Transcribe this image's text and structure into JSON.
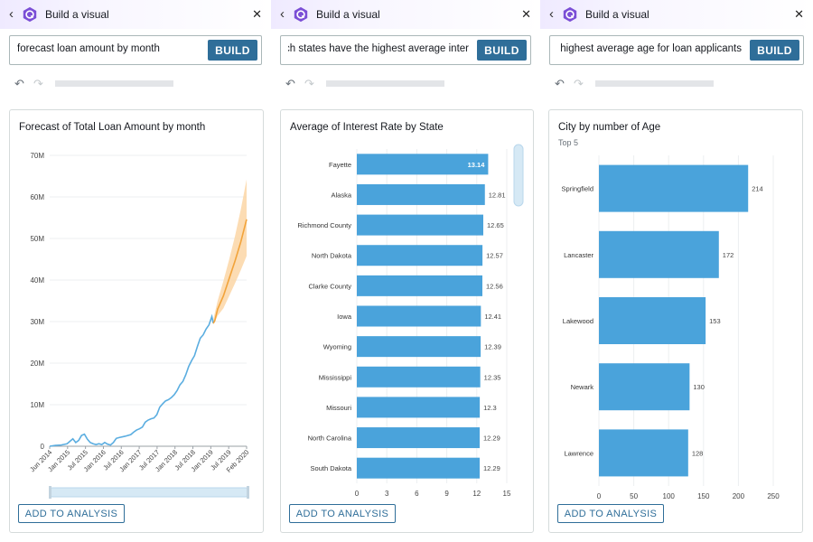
{
  "colors": {
    "bar": "#4aa3db",
    "line": "#5aade0",
    "forecast": "#f2a33a",
    "forecast_band": "#fbd6a6",
    "accent": "#2f6e99"
  },
  "panels": [
    {
      "header_title": "Build a visual",
      "query": "forecast loan amount by month",
      "build_label": "BUILD",
      "add_label": "ADD TO ANALYSIS",
      "card_title": "Forecast of Total Loan Amount by month"
    },
    {
      "header_title": "Build a visual",
      "query": "Which states have the highest average inter",
      "build_label": "BUILD",
      "add_label": "ADD TO ANALYSIS",
      "card_title": "Average of Interest Rate by State"
    },
    {
      "header_title": "Build a visual",
      "query": "the highest average age for loan applicants",
      "build_label": "BUILD",
      "add_label": "ADD TO ANALYSIS",
      "card_title": "City by number of Age",
      "card_subtitle": "Top 5"
    }
  ],
  "chart_data": [
    {
      "type": "line",
      "ytick_labels": [
        "0",
        "10M",
        "20M",
        "30M",
        "40M",
        "50M",
        "60M",
        "70M"
      ],
      "ylim": [
        0,
        70
      ],
      "xtick_labels": [
        "Jun 2014",
        "Jan 2015",
        "Jul 2015",
        "Jan 2016",
        "Jul 2016",
        "Jan 2017",
        "Jul 2017",
        "Jan 2018",
        "Jul 2018",
        "Jan 2019",
        "Jul 2019",
        "Feb 2020"
      ],
      "x_month_range": [
        0,
        68
      ],
      "series": [
        {
          "role": "actual",
          "points": [
            [
              0,
              0
            ],
            [
              2,
              0.2
            ],
            [
              4,
              0.3
            ],
            [
              6,
              0.6
            ],
            [
              7,
              1.2
            ],
            [
              8,
              1.8
            ],
            [
              9,
              0.9
            ],
            [
              10,
              1.4
            ],
            [
              11,
              2.6
            ],
            [
              12,
              2.9
            ],
            [
              13,
              1.7
            ],
            [
              14,
              0.9
            ],
            [
              15,
              0.6
            ],
            [
              16,
              0.4
            ],
            [
              17,
              0.6
            ],
            [
              18,
              0.4
            ],
            [
              19,
              0.9
            ],
            [
              20,
              0.5
            ],
            [
              21,
              0.3
            ],
            [
              22,
              0.9
            ],
            [
              23,
              1.9
            ],
            [
              24,
              2.1
            ],
            [
              26,
              2.4
            ],
            [
              28,
              2.8
            ],
            [
              29,
              3.4
            ],
            [
              30,
              3.9
            ],
            [
              31,
              4.2
            ],
            [
              32,
              4.6
            ],
            [
              33,
              5.8
            ],
            [
              34,
              6.3
            ],
            [
              35,
              6.6
            ],
            [
              36,
              6.8
            ],
            [
              37,
              7.6
            ],
            [
              38,
              9.4
            ],
            [
              39,
              10.2
            ],
            [
              40,
              10.9
            ],
            [
              41,
              11.2
            ],
            [
              42,
              11.7
            ],
            [
              43,
              12.4
            ],
            [
              44,
              13.4
            ],
            [
              45,
              14.8
            ],
            [
              46,
              15.6
            ],
            [
              47,
              17.2
            ],
            [
              48,
              19.2
            ],
            [
              49,
              20.6
            ],
            [
              50,
              21.8
            ],
            [
              51,
              24.0
            ],
            [
              52,
              26.0
            ],
            [
              53,
              26.8
            ],
            [
              54,
              28.2
            ],
            [
              55,
              29.2
            ],
            [
              56,
              31.2
            ],
            [
              56.5,
              29.6
            ]
          ]
        },
        {
          "role": "forecast",
          "points": [
            [
              56.5,
              29.6
            ],
            [
              57,
              30.2
            ],
            [
              58,
              33.0
            ],
            [
              60,
              36.2
            ],
            [
              62,
              40.4
            ],
            [
              64,
              44.6
            ],
            [
              66,
              49.2
            ],
            [
              68,
              54.6
            ]
          ]
        },
        {
          "role": "forecast_band",
          "upper": [
            [
              56.5,
              30.5
            ],
            [
              58,
              35.0
            ],
            [
              60,
              39.8
            ],
            [
              62,
              45.0
            ],
            [
              64,
              50.6
            ],
            [
              66,
              57.0
            ],
            [
              68,
              64.2
            ]
          ],
          "lower": [
            [
              56.5,
              29.2
            ],
            [
              58,
              31.4
            ],
            [
              60,
              33.2
            ],
            [
              62,
              36.2
            ],
            [
              64,
              39.2
            ],
            [
              66,
              42.4
            ],
            [
              68,
              45.8
            ]
          ]
        }
      ]
    },
    {
      "type": "bar",
      "orientation": "horizontal",
      "categories": [
        "Fayette",
        "Alaska",
        "Richmond County",
        "North Dakota",
        "Clarke County",
        "Iowa",
        "Wyoming",
        "Mississippi",
        "Missouri",
        "North Carolina",
        "South Dakota"
      ],
      "values": [
        13.14,
        12.81,
        12.65,
        12.57,
        12.56,
        12.41,
        12.39,
        12.35,
        12.3,
        12.29,
        12.29
      ],
      "value_labels": [
        "13.14",
        "12.81",
        "12.65",
        "12.57",
        "12.56",
        "12.41",
        "12.39",
        "12.35",
        "12.3",
        "12.29",
        "12.29"
      ],
      "xtick_labels": [
        "0",
        "3",
        "6",
        "9",
        "12",
        "15"
      ],
      "xlim": [
        0,
        15
      ]
    },
    {
      "type": "bar",
      "orientation": "horizontal",
      "categories": [
        "Springfield",
        "Lancaster",
        "Lakewood",
        "Newark",
        "Lawrence"
      ],
      "values": [
        214,
        172,
        153,
        130,
        128
      ],
      "value_labels": [
        "214",
        "172",
        "153",
        "130",
        "128"
      ],
      "xtick_labels": [
        "0",
        "50",
        "100",
        "150",
        "200",
        "250"
      ],
      "xlim": [
        0,
        250
      ]
    }
  ]
}
